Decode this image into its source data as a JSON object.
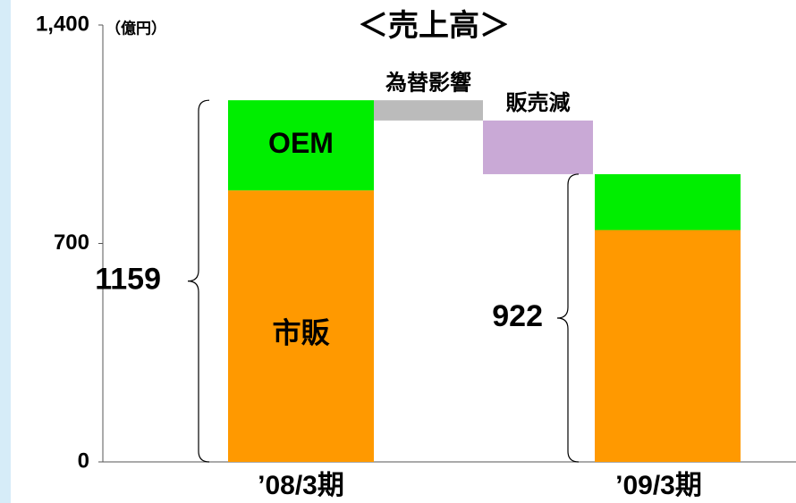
{
  "chart_data": {
    "type": "waterfall",
    "title": "＜売上高＞",
    "unit": "（億円）",
    "categories": [
      "’08/3期",
      "’09/3期"
    ],
    "series": [
      {
        "name": "市販",
        "color": "#ff9900",
        "values": [
          870,
          743
        ]
      },
      {
        "name": "OEM",
        "color": "#00ee00",
        "values": [
          289,
          179
        ]
      }
    ],
    "steps": [
      {
        "label": "為替影響",
        "value": -65,
        "color": "#bbbbbb"
      },
      {
        "label": "販売減",
        "value": -172,
        "color": "#c9a9d6"
      }
    ],
    "totals": [
      1159,
      922
    ],
    "ylim": [
      0,
      1400
    ],
    "yticks": [
      0,
      700,
      {
        "value": 1400,
        "label": "1,400"
      }
    ]
  }
}
